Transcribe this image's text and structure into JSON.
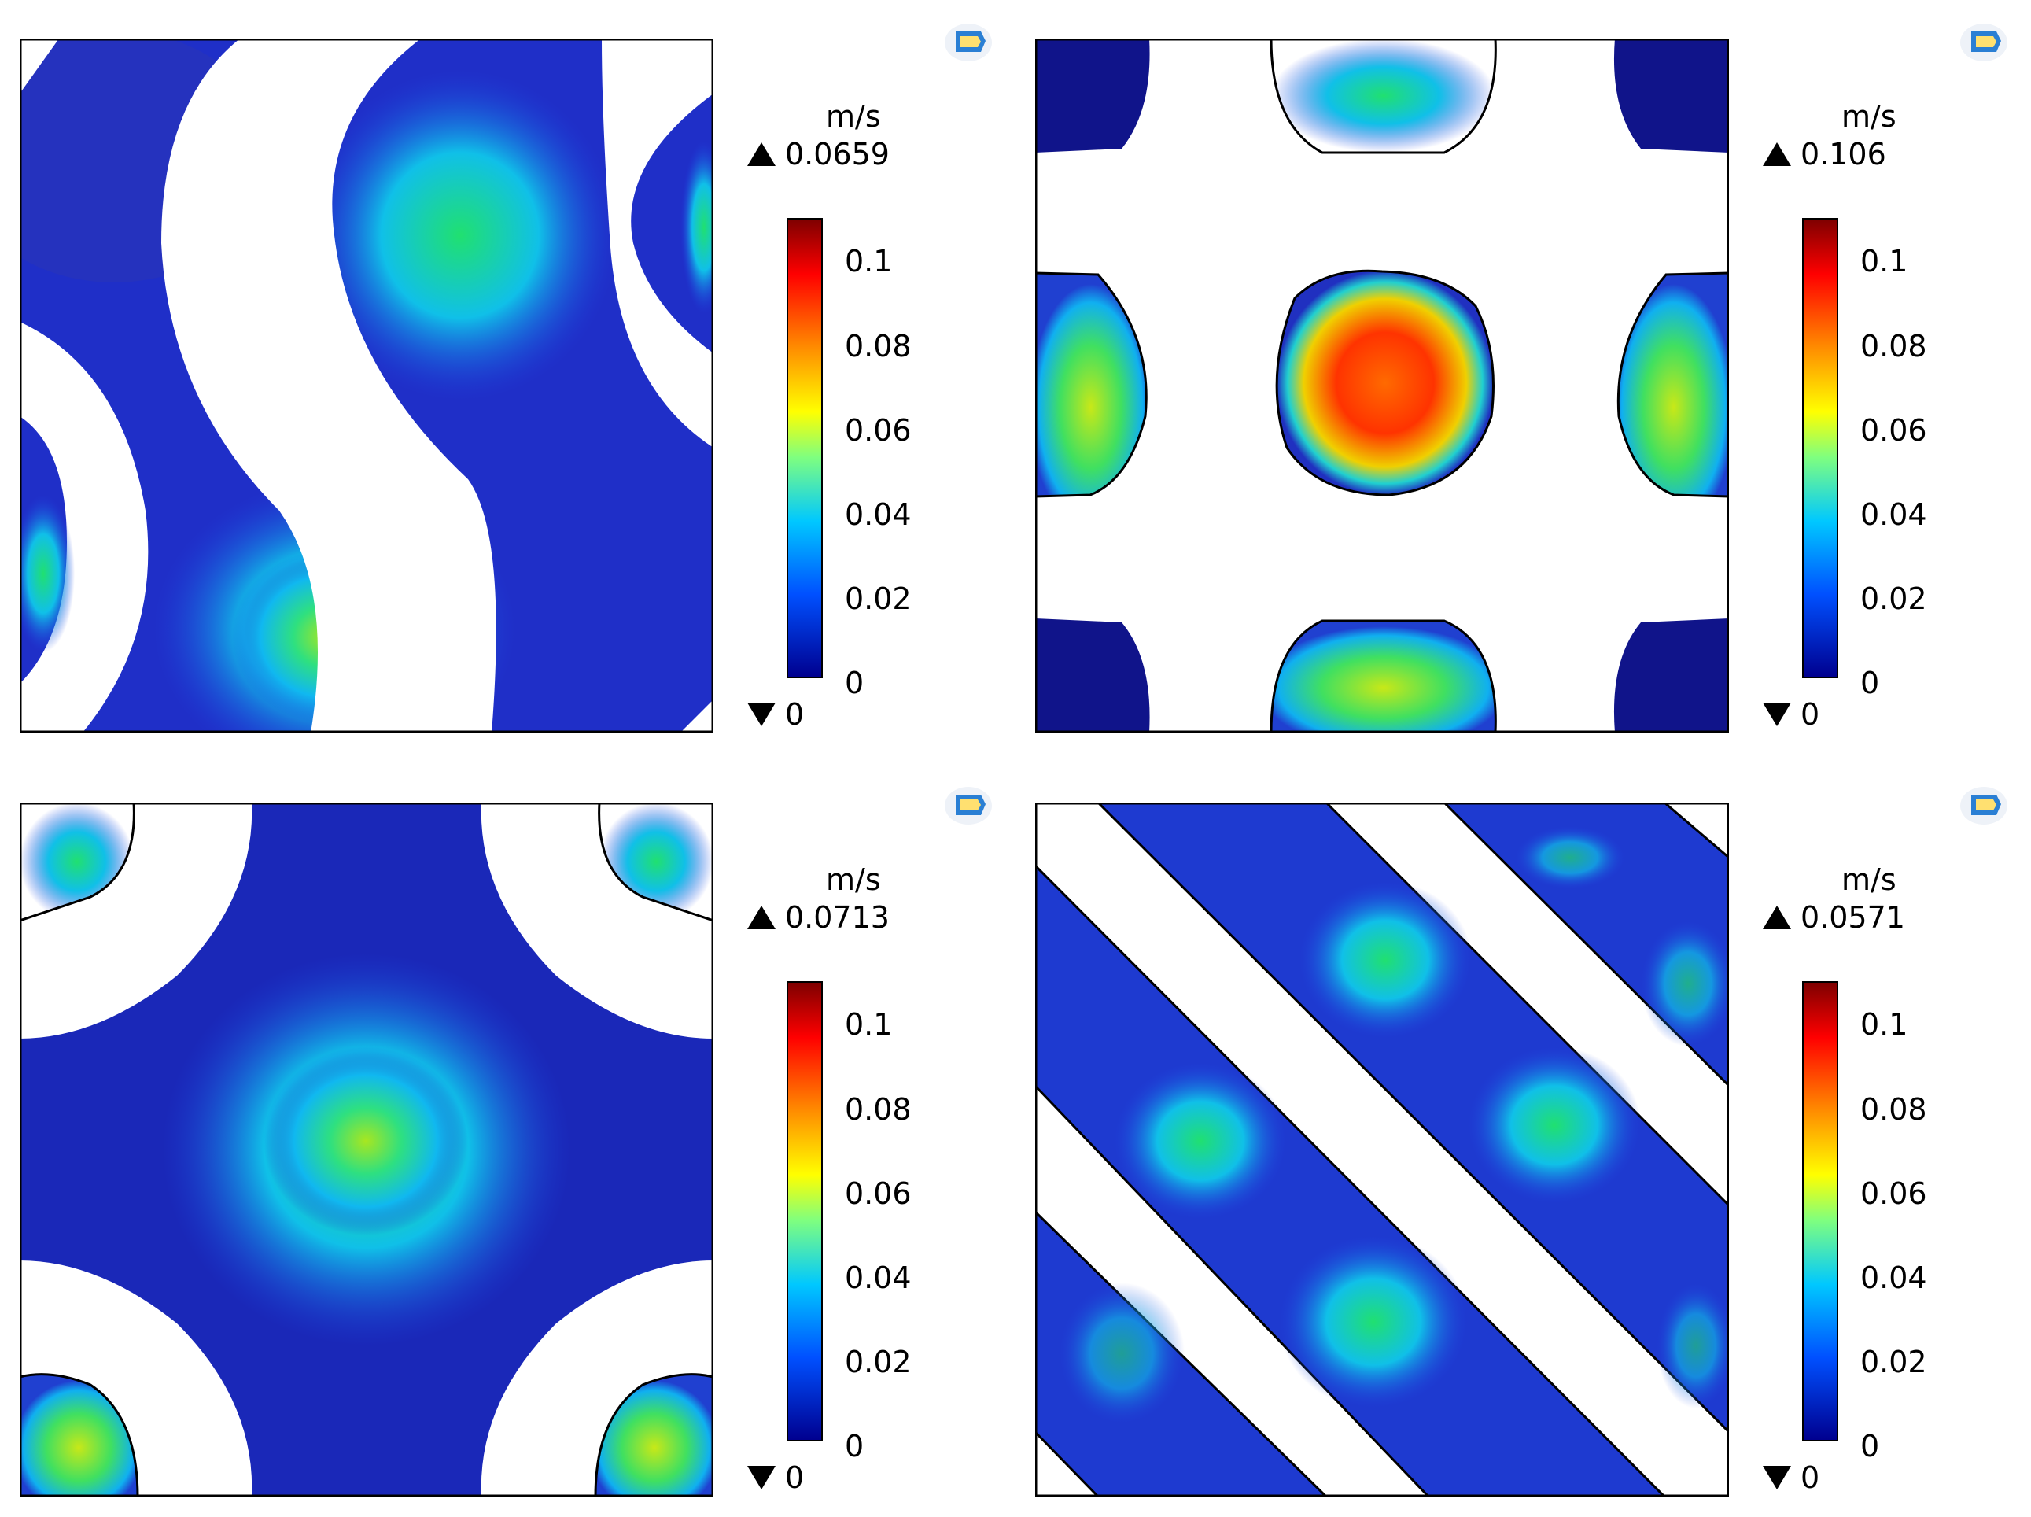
{
  "panels": [
    {
      "unit": "m/s",
      "max": "0.0659",
      "min": "0",
      "ticks": [
        "0.1",
        "0.08",
        "0.06",
        "0.04",
        "0.02",
        "0"
      ]
    },
    {
      "unit": "m/s",
      "max": "0.106",
      "min": "0",
      "ticks": [
        "0.1",
        "0.08",
        "0.06",
        "0.04",
        "0.02",
        "0"
      ]
    },
    {
      "unit": "m/s",
      "max": "0.0713",
      "min": "0",
      "ticks": [
        "0.1",
        "0.08",
        "0.06",
        "0.04",
        "0.02",
        "0"
      ]
    },
    {
      "unit": "m/s",
      "max": "0.0571",
      "min": "0",
      "ticks": [
        "0.1",
        "0.08",
        "0.06",
        "0.04",
        "0.02",
        "0"
      ]
    }
  ],
  "colorbar": {
    "stops": [
      "#7f0000",
      "#ff0000",
      "#ff8c00",
      "#ffff00",
      "#7fff7f",
      "#00c8ff",
      "#0050ff",
      "#00008f"
    ]
  },
  "icons": [
    "app-logo-icon",
    "triangle-up-icon",
    "triangle-down-icon"
  ]
}
